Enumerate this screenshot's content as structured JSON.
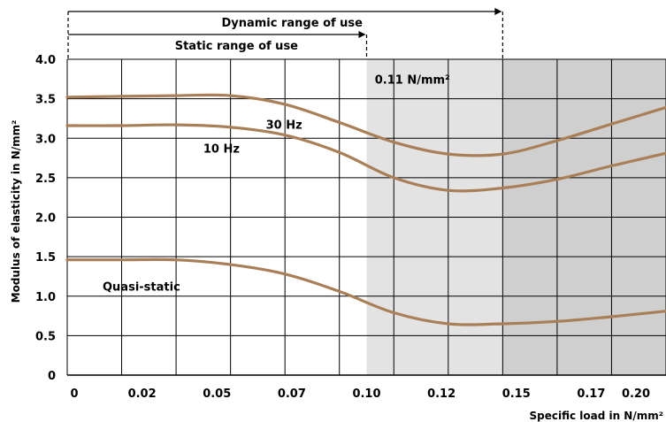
{
  "chart_data": {
    "type": "line",
    "ylabel": "Modulus of elasticity in N/mm²",
    "xlabel": "Specific load in N/mm²",
    "x_ticks": [
      "0",
      "0.02",
      "0.05",
      "0.07",
      "0.10",
      "0.12",
      "0.15",
      "0.17",
      "0.20"
    ],
    "y_ticks": [
      "0",
      "0.5",
      "1.0",
      "1.5",
      "2.0",
      "2.5",
      "3.0",
      "3.5",
      "4.0"
    ],
    "xlim": [
      0,
      0.22
    ],
    "ylim": [
      0,
      4.0
    ],
    "grid": true,
    "x": [
      0,
      0.02,
      0.04,
      0.06,
      0.08,
      0.1,
      0.12,
      0.14,
      0.16,
      0.18,
      0.2,
      0.22
    ],
    "series": [
      {
        "name": "30 Hz",
        "values": [
          3.52,
          3.53,
          3.54,
          3.54,
          3.43,
          3.2,
          2.95,
          2.8,
          2.8,
          2.97,
          3.18,
          3.39
        ]
      },
      {
        "name": "10 Hz",
        "values": [
          3.16,
          3.16,
          3.17,
          3.14,
          3.04,
          2.82,
          2.5,
          2.34,
          2.37,
          2.48,
          2.65,
          2.81
        ]
      },
      {
        "name": "Quasi-static",
        "values": [
          1.46,
          1.46,
          1.46,
          1.4,
          1.28,
          1.06,
          0.79,
          0.65,
          0.65,
          0.68,
          0.74,
          0.81
        ]
      }
    ],
    "regions": [
      {
        "from": 0.11,
        "to": 0.16,
        "shade": "#e3e3e3"
      },
      {
        "from": 0.16,
        "to": 0.22,
        "shade": "#cfcfcf"
      }
    ],
    "annotations": [
      {
        "text": "Dynamic range of use",
        "range_to": 0.16
      },
      {
        "text": "Static range of use",
        "range_to": 0.11
      },
      {
        "text": "0.11 N/mm²",
        "at_x": 0.113,
        "at_y": 3.75
      }
    ],
    "line_color": "#a97f58"
  }
}
